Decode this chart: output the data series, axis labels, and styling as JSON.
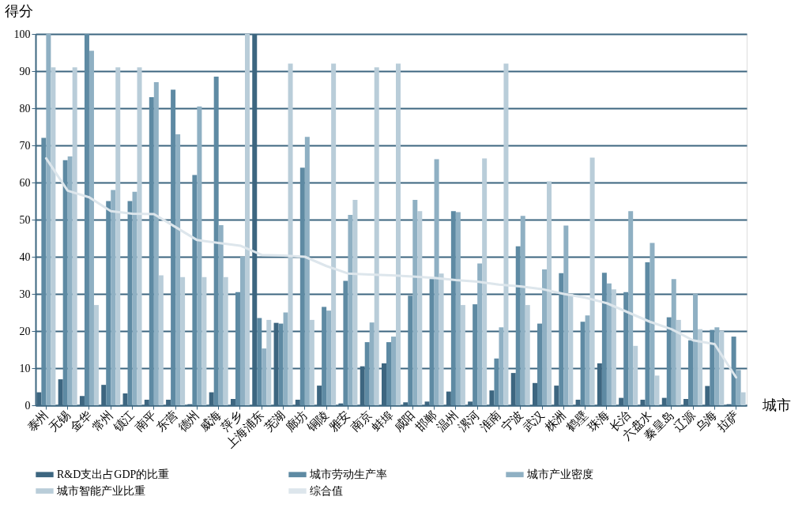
{
  "chart_data": {
    "type": "bar",
    "xlabel": "城市",
    "ylabel": "得分",
    "categories": [
      "泰州",
      "无锡",
      "金华",
      "常州",
      "镇江",
      "南平",
      "东营",
      "德州",
      "威海",
      "萍乡",
      "上海浦东",
      "芜湖",
      "廊坊",
      "铜陵",
      "雅安",
      "南京",
      "蚌埠",
      "咸阳",
      "邯郸",
      "温州",
      "漯河",
      "淮南",
      "宁波",
      "武汉",
      "株洲",
      "鹤壁",
      "珠海",
      "长治",
      "六盘水",
      "秦皇岛",
      "辽源",
      "乌海",
      "拉萨"
    ],
    "series": [
      {
        "name": "R&D支出占GDP的比重",
        "color": "#3d6680",
        "values": [
          3.5,
          7,
          2.5,
          5.5,
          3.2,
          1.5,
          1.5,
          0.3,
          3.5,
          1.7,
          100,
          22.2,
          1.5,
          5.3,
          0.5,
          10.5,
          11.3,
          0.8,
          1,
          3.7,
          1,
          4,
          8.7,
          6,
          5.3,
          1.5,
          11.3,
          2,
          1.5,
          2,
          1.7,
          5.2,
          0.3
        ]
      },
      {
        "name": "城市劳动生产率",
        "color": "#5e8aa3",
        "values": [
          72,
          66,
          100,
          55,
          55,
          83,
          85,
          62,
          88.5,
          30.5,
          23.5,
          22,
          64,
          26.5,
          33.5,
          17,
          17,
          29.5,
          34,
          52.3,
          27.2,
          12.6,
          42.8,
          22,
          35.6,
          22.5,
          35.7,
          30.5,
          38.5,
          23.7,
          17.5,
          20.3,
          18.5
        ]
      },
      {
        "name": "城市产业密度",
        "color": "#8fb0c3",
        "values": [
          100,
          67,
          95.5,
          58,
          57.5,
          87,
          73,
          80.5,
          48.5,
          40,
          15.3,
          25,
          72.3,
          25.5,
          51.3,
          22.3,
          18.5,
          55.3,
          66.3,
          52,
          38.2,
          21,
          51,
          36.6,
          48.4,
          24.2,
          32.8,
          52.3,
          43.7,
          34,
          30,
          21,
          9.5
        ]
      },
      {
        "name": "城市智能产业比重",
        "color": "#b9cdd9",
        "values": [
          91,
          91,
          27,
          91,
          91,
          35,
          34.5,
          34.5,
          34.5,
          100,
          23,
          92,
          23,
          92,
          55.3,
          91,
          92,
          52.3,
          35.5,
          27,
          66.5,
          92,
          27,
          60.3,
          30,
          66.7,
          31.2,
          16,
          8,
          23,
          20.5,
          20,
          3.5
        ]
      },
      {
        "name": "综合值",
        "type": "line",
        "color": "#dde6ec",
        "values": [
          66.5,
          57.8,
          56,
          52.3,
          51.6,
          51.5,
          48,
          44.5,
          43.7,
          43,
          40.5,
          40.3,
          40,
          37.5,
          35.5,
          35.2,
          35,
          34.7,
          34.3,
          33.7,
          33.3,
          32.5,
          32,
          31.3,
          30,
          29,
          27.5,
          25,
          22.5,
          20.5,
          17.5,
          16.5,
          7.5
        ]
      }
    ],
    "ylim": [
      0,
      100
    ],
    "yticks": [
      0,
      10,
      20,
      30,
      40,
      50,
      60,
      70,
      80,
      90,
      100
    ],
    "grid": "y",
    "legend": "bottom"
  }
}
